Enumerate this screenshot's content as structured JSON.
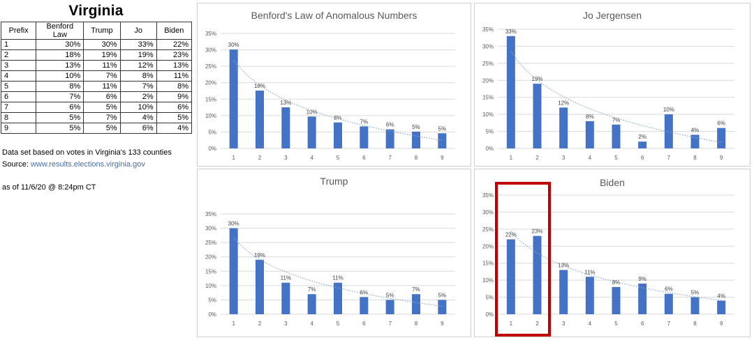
{
  "title": "Virginia",
  "table": {
    "headers": [
      "Prefix",
      "Benford Law",
      "Trump",
      "Jo",
      "Biden"
    ],
    "rows": [
      [
        "1",
        "30%",
        "30%",
        "33%",
        "22%"
      ],
      [
        "2",
        "18%",
        "19%",
        "19%",
        "23%"
      ],
      [
        "3",
        "13%",
        "11%",
        "12%",
        "13%"
      ],
      [
        "4",
        "10%",
        "7%",
        "8%",
        "11%"
      ],
      [
        "5",
        "8%",
        "11%",
        "7%",
        "8%"
      ],
      [
        "6",
        "7%",
        "6%",
        "2%",
        "9%"
      ],
      [
        "7",
        "6%",
        "5%",
        "10%",
        "6%"
      ],
      [
        "8",
        "5%",
        "7%",
        "4%",
        "5%"
      ],
      [
        "9",
        "5%",
        "5%",
        "6%",
        "4%"
      ]
    ]
  },
  "notes": {
    "line1": "Data set based on votes in Virginia's 133 counties",
    "source_label": "Source: ",
    "source_link": "www.results.elections.virginia.gov",
    "line3": "as of 11/6/20 @ 8:24pm CT"
  },
  "colors": {
    "bar": "#4472c4",
    "trendline": "#8aa9c8",
    "highlight": "#c00000",
    "grid": "#d9d9d9"
  },
  "chart_data": [
    {
      "type": "bar",
      "title": "Benford's Law of Anomalous Numbers",
      "categories": [
        "1",
        "2",
        "3",
        "4",
        "5",
        "6",
        "7",
        "8",
        "9"
      ],
      "values": [
        30.1,
        17.6,
        12.5,
        9.7,
        7.9,
        6.7,
        5.8,
        5.1,
        4.6
      ],
      "labels": [
        "30%",
        "18%",
        "13%",
        "10%",
        "8%",
        "7%",
        "6%",
        "5%",
        "5%"
      ],
      "ylim": [
        0,
        35
      ],
      "yticks": [
        "0%",
        "5%",
        "10%",
        "15%",
        "20%",
        "25%",
        "30%",
        "35%"
      ],
      "trendline": "logarithmic",
      "grid": true
    },
    {
      "type": "bar",
      "title": "Jo Jergensen",
      "categories": [
        "1",
        "2",
        "3",
        "4",
        "5",
        "6",
        "7",
        "8",
        "9"
      ],
      "values": [
        33,
        19,
        12,
        8,
        7,
        2,
        10,
        4,
        6
      ],
      "labels": [
        "33%",
        "19%",
        "12%",
        "8%",
        "7%",
        "2%",
        "10%",
        "4%",
        "6%"
      ],
      "ylim": [
        0,
        35
      ],
      "yticks": [
        "0%",
        "5%",
        "10%",
        "15%",
        "20%",
        "25%",
        "30%",
        "35%"
      ],
      "trendline": "logarithmic",
      "grid": true
    },
    {
      "type": "bar",
      "title": "Trump",
      "categories": [
        "1",
        "2",
        "3",
        "4",
        "5",
        "6",
        "7",
        "8",
        "9"
      ],
      "values": [
        30,
        19,
        11,
        7,
        11,
        6,
        5,
        7,
        5
      ],
      "labels": [
        "30%",
        "19%",
        "11%",
        "7%",
        "11%",
        "6%",
        "5%",
        "7%",
        "5%"
      ],
      "ylim": [
        0,
        35
      ],
      "yticks": [
        "0%",
        "5%",
        "10%",
        "15%",
        "20%",
        "25%",
        "30%",
        "35%"
      ],
      "trendline": "logarithmic",
      "grid": true
    },
    {
      "type": "bar",
      "title": "Biden",
      "categories": [
        "1",
        "2",
        "3",
        "4",
        "5",
        "6",
        "7",
        "8",
        "9"
      ],
      "values": [
        22,
        23,
        13,
        11,
        8,
        9,
        6,
        5,
        4
      ],
      "labels": [
        "22%",
        "23%",
        "13%",
        "11%",
        "8%",
        "9%",
        "6%",
        "5%",
        "4%"
      ],
      "ylim": [
        0,
        35
      ],
      "yticks": [
        "0%",
        "5%",
        "10%",
        "15%",
        "20%",
        "25%",
        "30%",
        "35%"
      ],
      "trendline": "logarithmic",
      "grid": true,
      "highlighted_categories": [
        "1",
        "2"
      ]
    }
  ]
}
